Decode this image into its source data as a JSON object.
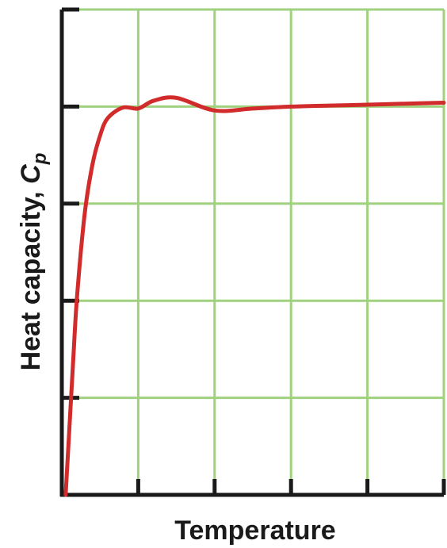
{
  "chart_data": {
    "type": "line",
    "title": "",
    "xlabel": "Temperature",
    "ylabel": "Heat capacity, ",
    "ylabel_symbol": "C",
    "ylabel_subscript": "p",
    "xlim": [
      0,
      5
    ],
    "ylim": [
      0,
      5
    ],
    "grid": true,
    "colors": {
      "line": "#d22b2b",
      "grid": "#9fd17f",
      "axis": "#1a1a1a"
    },
    "series": [
      {
        "x": [
          0.05,
          0.1,
          0.15,
          0.2,
          0.3,
          0.4,
          0.5,
          0.6,
          0.8,
          1.0,
          1.2,
          1.5,
          2.0,
          2.5,
          3.0,
          3.5,
          4.0,
          4.5,
          5.0
        ],
        "values": [
          0.0,
          0.7,
          1.4,
          2.05,
          2.9,
          3.4,
          3.7,
          3.88,
          3.99,
          3.98,
          4.06,
          4.09,
          3.96,
          3.98,
          4.0,
          4.01,
          4.02,
          4.03,
          4.04
        ]
      }
    ]
  }
}
